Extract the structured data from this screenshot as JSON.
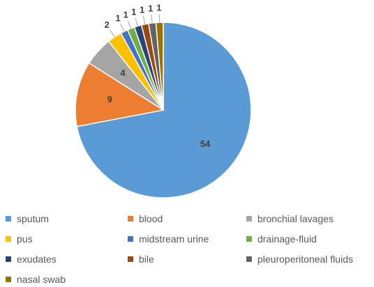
{
  "chart_data": {
    "type": "pie",
    "title": "",
    "slices": [
      {
        "label": "sputum",
        "value": 54,
        "color": "#5b9bd5"
      },
      {
        "label": "blood",
        "value": 9,
        "color": "#ed7d31"
      },
      {
        "label": "bronchial lavages",
        "value": 4,
        "color": "#a5a5a5"
      },
      {
        "label": "pus",
        "value": 2,
        "color": "#ffc000"
      },
      {
        "label": "midstream urine",
        "value": 1,
        "color": "#4472c4"
      },
      {
        "label": "drainage-fluid",
        "value": 1,
        "color": "#70ad47"
      },
      {
        "label": "exudates",
        "value": 1,
        "color": "#264478"
      },
      {
        "label": "bile",
        "value": 1,
        "color": "#9e480e"
      },
      {
        "label": "pleuroperitoneal fluids",
        "value": 1,
        "color": "#636363"
      },
      {
        "label": "nasal swab",
        "value": 1,
        "color": "#997300"
      }
    ],
    "legend_position": "bottom",
    "data_labels": "values"
  }
}
